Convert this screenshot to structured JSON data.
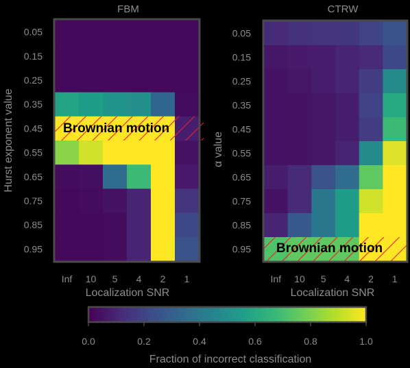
{
  "chart_data": {
    "type": "heatmap",
    "colormap": "viridis",
    "colorbar": {
      "label": "Fraction of incorrect classification",
      "range": [
        0,
        1
      ],
      "ticks": [
        "0.0",
        "0.2",
        "0.4",
        "0.6",
        "0.8",
        "1.0"
      ],
      "stops": [
        "#440154",
        "#482878",
        "#3e4a89",
        "#31688e",
        "#26828e",
        "#1f9e89",
        "#35b779",
        "#6ece58",
        "#b5de2b",
        "#fde725"
      ]
    },
    "panels": [
      {
        "title": "FBM",
        "xlabel": "Localization SNR",
        "ylabel": "Hurst exponent value",
        "x_categories": [
          "Inf",
          "10",
          "5",
          "4",
          "2",
          "1"
        ],
        "y_categories": [
          "0.05",
          "0.15",
          "0.25",
          "0.35",
          "0.45",
          "0.55",
          "0.65",
          "0.75",
          "0.85",
          "0.95"
        ],
        "values": [
          [
            0.02,
            0.02,
            0.02,
            0.02,
            0.02,
            0.02
          ],
          [
            0.02,
            0.02,
            0.02,
            0.02,
            0.02,
            0.02
          ],
          [
            0.02,
            0.02,
            0.02,
            0.02,
            0.02,
            0.02
          ],
          [
            0.58,
            0.55,
            0.52,
            0.5,
            0.33,
            0.03
          ],
          [
            1.0,
            1.0,
            1.0,
            1.0,
            1.0,
            0.08
          ],
          [
            0.82,
            0.93,
            1.0,
            1.0,
            1.0,
            0.05
          ],
          [
            0.03,
            0.04,
            0.35,
            0.68,
            1.0,
            0.07
          ],
          [
            0.02,
            0.03,
            0.05,
            0.1,
            1.0,
            0.15
          ],
          [
            0.02,
            0.02,
            0.03,
            0.1,
            1.0,
            0.22
          ],
          [
            0.02,
            0.02,
            0.03,
            0.1,
            1.0,
            0.25
          ]
        ],
        "annotation": {
          "text": "Brownian motion",
          "row": "0.45"
        }
      },
      {
        "title": "CTRW",
        "xlabel": "Localization SNR",
        "ylabel": "α value",
        "x_categories": [
          "Inf",
          "10",
          "5",
          "4",
          "2",
          "1"
        ],
        "y_categories": [
          "0.05",
          "0.15",
          "0.25",
          "0.35",
          "0.45",
          "0.55",
          "0.65",
          "0.75",
          "0.85",
          "0.95"
        ],
        "values": [
          [
            0.12,
            0.14,
            0.15,
            0.16,
            0.2,
            0.25
          ],
          [
            0.06,
            0.07,
            0.08,
            0.1,
            0.12,
            0.22
          ],
          [
            0.05,
            0.06,
            0.08,
            0.1,
            0.18,
            0.48
          ],
          [
            0.05,
            0.05,
            0.06,
            0.08,
            0.2,
            0.6
          ],
          [
            0.05,
            0.05,
            0.06,
            0.08,
            0.18,
            0.68
          ],
          [
            0.05,
            0.05,
            0.06,
            0.1,
            0.48,
            0.95
          ],
          [
            0.08,
            0.12,
            0.25,
            0.35,
            0.75,
            1.0
          ],
          [
            0.05,
            0.12,
            0.4,
            0.55,
            0.93,
            1.0
          ],
          [
            0.1,
            0.28,
            0.4,
            0.55,
            1.0,
            1.0
          ],
          [
            0.72,
            0.75,
            0.75,
            0.75,
            1.0,
            1.0
          ]
        ],
        "annotation": {
          "text": "Brownian motion",
          "row": "0.95"
        }
      }
    ]
  }
}
